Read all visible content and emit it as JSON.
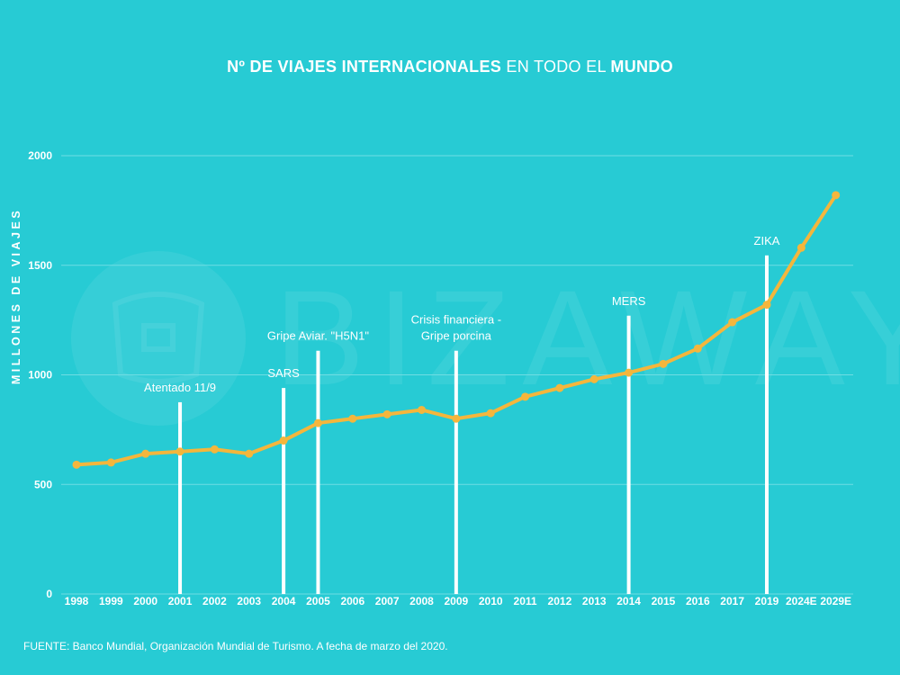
{
  "title": {
    "part1": "Nº DE VIAJES INTERNACIONALES",
    "part2": "EN TODO EL",
    "part3": "MUNDO"
  },
  "footer": "FUENTE: Banco Mundial, Organización Mundial de Turismo. A fecha de marzo del 2020.",
  "watermark": "BIZAWAY",
  "colors": {
    "background": "#27cbd4",
    "line": "#f4b63c",
    "bars": "#ffffff",
    "grid": "#6fdde3"
  },
  "chart_data": {
    "type": "line",
    "title": "Nº DE VIAJES INTERNACIONALES EN TODO EL MUNDO",
    "xlabel": "",
    "ylabel": "MILLONES DE VIAJES",
    "ylim": [
      0,
      2000
    ],
    "yticks": [
      0,
      500,
      1000,
      1500,
      2000
    ],
    "grid": true,
    "categories": [
      "1998",
      "1999",
      "2000",
      "2001",
      "2002",
      "2003",
      "2004",
      "2005",
      "2006",
      "2007",
      "2008",
      "2009",
      "2010",
      "2011",
      "2012",
      "2013",
      "2014",
      "2015",
      "2016",
      "2017",
      "2019",
      "2024E",
      "2029E"
    ],
    "series": [
      {
        "values": [
          590,
          600,
          640,
          650,
          660,
          640,
          700,
          780,
          800,
          820,
          840,
          800,
          825,
          900,
          940,
          980,
          1010,
          1050,
          1120,
          1240,
          1320,
          1580,
          1820
        ]
      }
    ],
    "events": [
      {
        "category": "2001",
        "label": "Atentado 11/9",
        "height": 875
      },
      {
        "category": "2004",
        "label": "SARS",
        "height": 940
      },
      {
        "category": "2005",
        "label": "Gripe Aviar. \"H5N1\"",
        "height": 1110
      },
      {
        "category": "2009",
        "label": "Crisis financiera -\nGripe porcina",
        "height": 1110
      },
      {
        "category": "2014",
        "label": "MERS",
        "height": 1270
      },
      {
        "category": "2019",
        "label": "ZIKA",
        "height": 1545
      }
    ]
  }
}
